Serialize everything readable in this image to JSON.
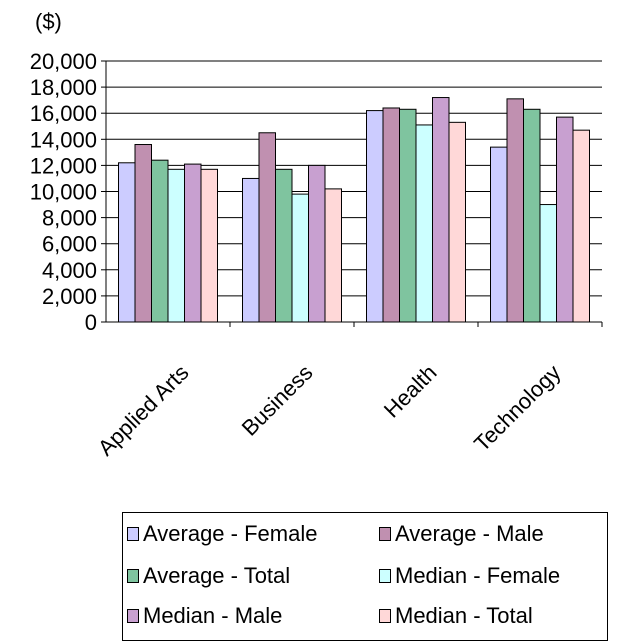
{
  "chart_data": {
    "type": "bar",
    "unit_label": "($)",
    "categories": [
      "Applied Arts",
      "Business",
      "Health",
      "Technology"
    ],
    "ylim": [
      0,
      20000
    ],
    "yticks": [
      "0",
      "2,000",
      "4,000",
      "6,000",
      "8,000",
      "10,000",
      "12,000",
      "14,000",
      "16,000",
      "18,000",
      "20,000"
    ],
    "grid": true,
    "legend_position": "bottom",
    "series": [
      {
        "name": "Average - Female",
        "color": "#ccccff",
        "values": [
          12200,
          11000,
          16200,
          13400
        ]
      },
      {
        "name": "Average - Male",
        "color": "#c090b0",
        "values": [
          13600,
          14500,
          16400,
          17100
        ]
      },
      {
        "name": "Average - Total",
        "color": "#7fc49f",
        "values": [
          12400,
          11700,
          16300,
          16300
        ]
      },
      {
        "name": "Median - Female",
        "color": "#ccffff",
        "values": [
          11700,
          9800,
          15100,
          9000
        ]
      },
      {
        "name": "Median - Male",
        "color": "#c8a0d0",
        "values": [
          12100,
          12000,
          17200,
          15700
        ]
      },
      {
        "name": "Median - Total",
        "color": "#ffd8d8",
        "values": [
          11700,
          10200,
          15300,
          14700
        ]
      }
    ]
  }
}
